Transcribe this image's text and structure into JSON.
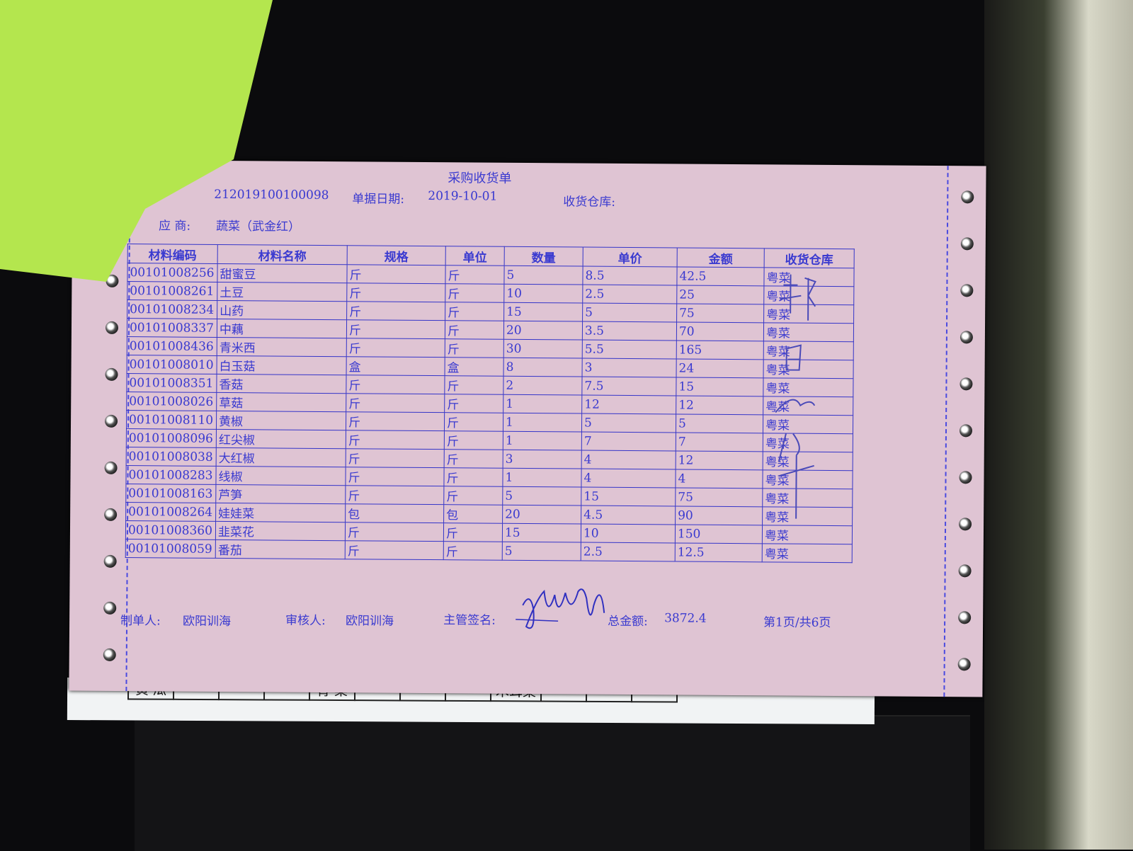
{
  "form": {
    "title": "采购收货单",
    "doc_number": "212019100100098",
    "date_label": "单据日期:",
    "date_value": "2019-10-01",
    "warehouse_label": "收货仓库:",
    "supplier_label": "应 商:",
    "supplier_value": "蔬菜（武金红）"
  },
  "table": {
    "headers": [
      "材料编码",
      "材料名称",
      "规格",
      "单位",
      "数量",
      "单价",
      "金额",
      "收货仓库"
    ],
    "rows": [
      [
        "00101008256",
        "甜蜜豆",
        "斤",
        "斤",
        "5",
        "8.5",
        "42.5",
        "粤菜"
      ],
      [
        "00101008261",
        "土豆",
        "斤",
        "斤",
        "10",
        "2.5",
        "25",
        "粤菜"
      ],
      [
        "00101008234",
        "山药",
        "斤",
        "斤",
        "15",
        "5",
        "75",
        "粤菜"
      ],
      [
        "00101008337",
        "中藕",
        "斤",
        "斤",
        "20",
        "3.5",
        "70",
        "粤菜"
      ],
      [
        "00101008436",
        "青米西",
        "斤",
        "斤",
        "30",
        "5.5",
        "165",
        "粤菜"
      ],
      [
        "00101008010",
        "白玉菇",
        "盒",
        "盒",
        "8",
        "3",
        "24",
        "粤菜"
      ],
      [
        "00101008351",
        "香菇",
        "斤",
        "斤",
        "2",
        "7.5",
        "15",
        "粤菜"
      ],
      [
        "00101008026",
        "草菇",
        "斤",
        "斤",
        "1",
        "12",
        "12",
        "粤菜"
      ],
      [
        "00101008110",
        "黄椒",
        "斤",
        "斤",
        "1",
        "5",
        "5",
        "粤菜"
      ],
      [
        "00101008096",
        "红尖椒",
        "斤",
        "斤",
        "1",
        "7",
        "7",
        "粤菜"
      ],
      [
        "00101008038",
        "大红椒",
        "斤",
        "斤",
        "3",
        "4",
        "12",
        "粤菜"
      ],
      [
        "00101008283",
        "线椒",
        "斤",
        "斤",
        "1",
        "4",
        "4",
        "粤菜"
      ],
      [
        "00101008163",
        "芦笋",
        "斤",
        "斤",
        "5",
        "15",
        "75",
        "粤菜"
      ],
      [
        "00101008264",
        "娃娃菜",
        "包",
        "包",
        "20",
        "4.5",
        "90",
        "粤菜"
      ],
      [
        "00101008360",
        "韭菜花",
        "斤",
        "斤",
        "15",
        "10",
        "150",
        "粤菜"
      ],
      [
        "00101008059",
        "番茄",
        "斤",
        "斤",
        "5",
        "2.5",
        "12.5",
        "粤菜"
      ]
    ]
  },
  "footer": {
    "maker_label": "制单人:",
    "maker_value": "欧阳训海",
    "reviewer_label": "审核人:",
    "reviewer_value": "欧阳训海",
    "supervisor_label": "主管签名:",
    "total_label": "总金额:",
    "total_value": "3872.4",
    "page": "第1页/共6页"
  },
  "under_sheet": {
    "cells": [
      "黄 瓜",
      "",
      "",
      "",
      "青 菜",
      "",
      "",
      "",
      "木耳菜",
      "",
      "",
      ""
    ]
  },
  "colors": {
    "ink": "#3a3ad0",
    "paper": "#dfc4d3",
    "green_paper": "#b4e64e",
    "background": "#0b0b0d"
  }
}
